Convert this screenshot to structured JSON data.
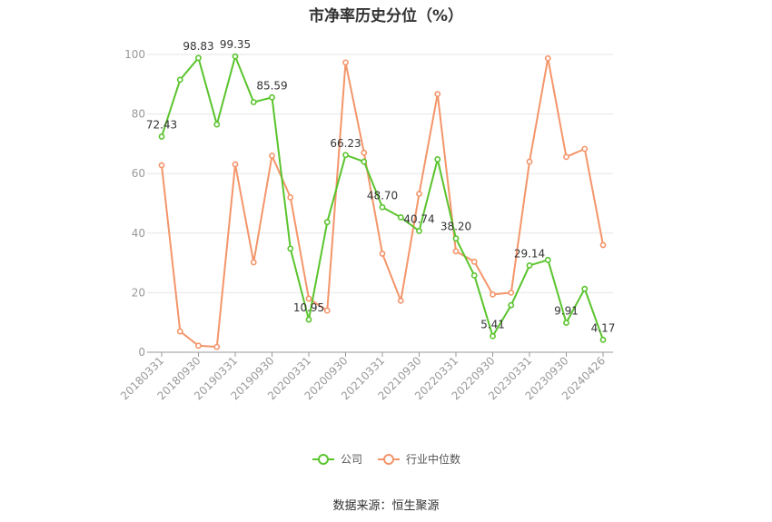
{
  "chart_data": {
    "type": "line",
    "title": "市净率历史分位（%）",
    "ylim": [
      0,
      100
    ],
    "yticks": [
      "0",
      "20",
      "40",
      "60",
      "80",
      "100"
    ],
    "grid": true,
    "legend_position": "bottom",
    "x_tick_labels": [
      "20180331",
      "20180930",
      "20190331",
      "20190930",
      "20200331",
      "20200930",
      "20210331",
      "20210930",
      "20220331",
      "20220930",
      "20230331",
      "20230930",
      "20240426"
    ],
    "series": [
      {
        "name": "公司",
        "color": "#5ac42d",
        "values": [
          72.43,
          91.5,
          98.83,
          76.5,
          99.35,
          84.0,
          85.59,
          34.8,
          10.95,
          43.7,
          66.23,
          64.0,
          48.7,
          45.3,
          40.74,
          64.8,
          38.2,
          25.8,
          5.41,
          15.8,
          29.14,
          31.0,
          9.91,
          21.3,
          4.17
        ],
        "labels": [
          "72.43",
          "",
          "98.83",
          "",
          "99.35",
          "",
          "85.59",
          "",
          "10.95",
          "",
          "66.23",
          "",
          "48.70",
          "",
          "40.74",
          "",
          "38.20",
          "",
          "5.41",
          "",
          "29.14",
          "",
          "9.91",
          "",
          "4.17"
        ]
      },
      {
        "name": "行业中位数",
        "color": "#f4956a",
        "values": [
          62.8,
          7.0,
          2.2,
          1.8,
          63.1,
          30.2,
          66.0,
          52.0,
          18.0,
          14.0,
          97.3,
          67.0,
          33.1,
          17.3,
          53.2,
          86.7,
          33.9,
          30.4,
          19.4,
          20.0,
          64.0,
          98.7,
          65.6,
          68.3,
          36.0
        ]
      }
    ]
  },
  "legend": {
    "company": "公司",
    "industry": "行业中位数"
  },
  "source": "数据来源：恒生聚源"
}
